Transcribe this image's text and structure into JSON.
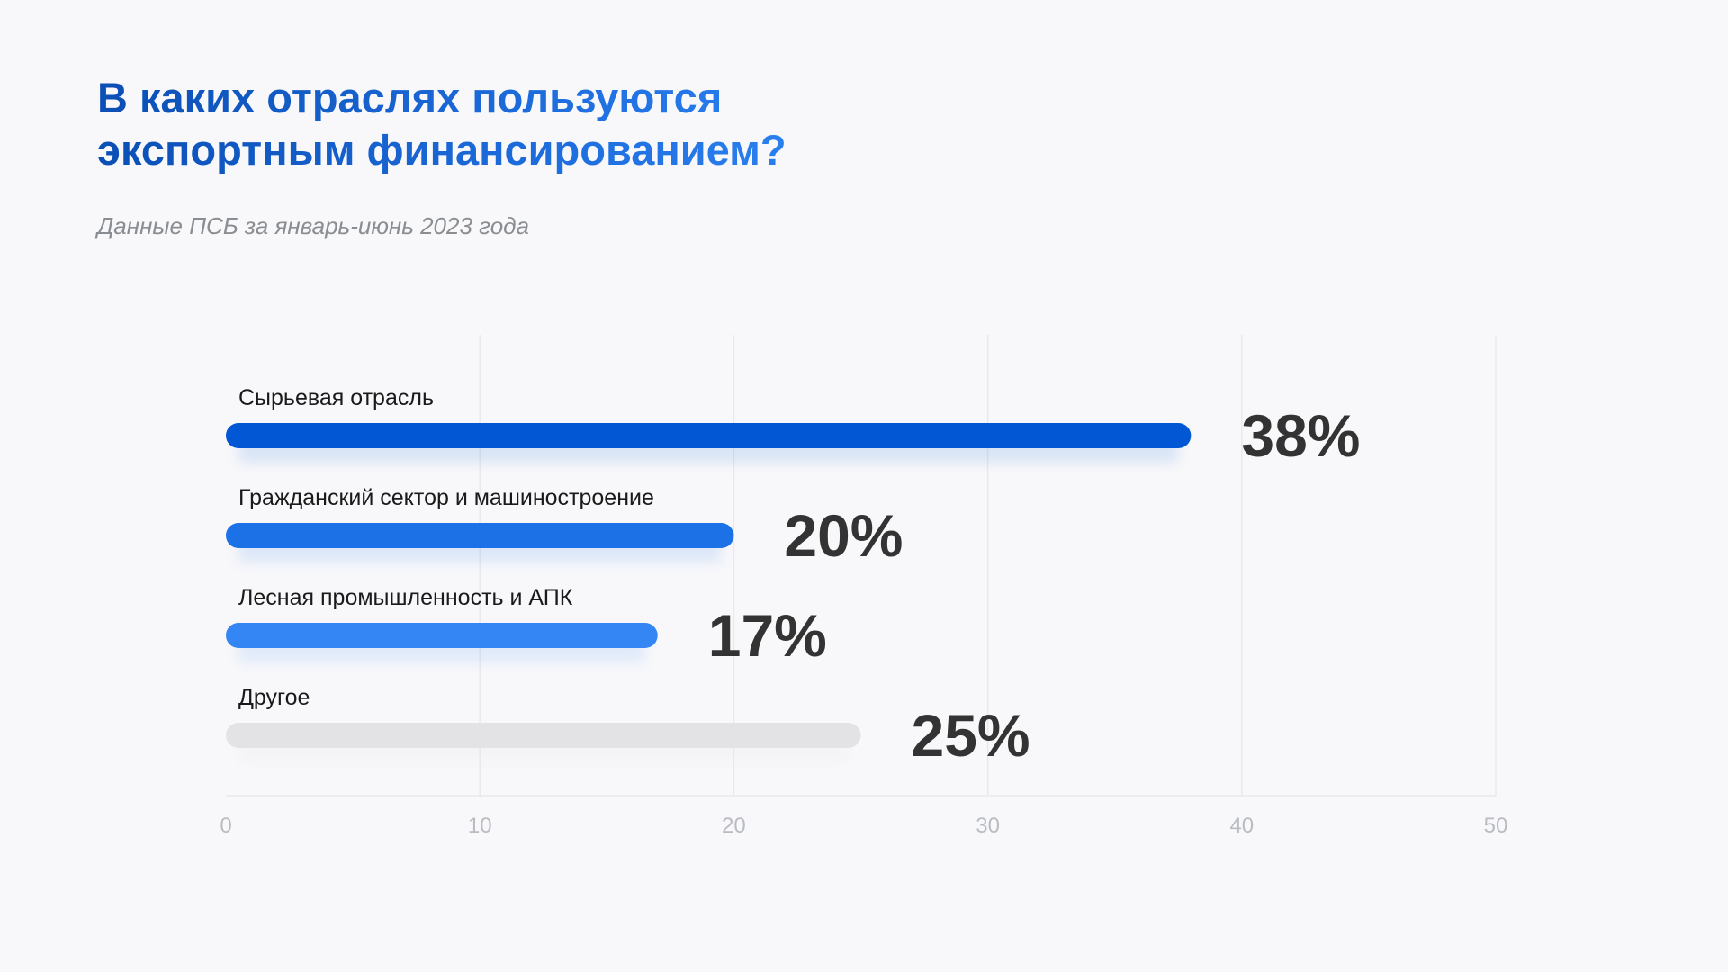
{
  "header": {
    "title_line1": "В каких отраслях пользуются",
    "title_line2": "экспортным финансированием?",
    "subtitle": "Данные ПСБ за январь-июнь 2023 года"
  },
  "chart_data": {
    "type": "bar",
    "orientation": "horizontal",
    "title": "В каких отраслях пользуются экспортным финансированием?",
    "subtitle": "Данные ПСБ за январь-июнь 2023 года",
    "categories": [
      "Сырьевая отрасль",
      "Гражданский сектор и машиностроение",
      "Лесная промышленность и АПК",
      "Другое"
    ],
    "values": [
      38,
      20,
      17,
      25
    ],
    "value_labels": [
      "38%",
      "20%",
      "17%",
      "25%"
    ],
    "bar_colors": [
      "#0257d4",
      "#1d71e6",
      "#3386f4",
      "#e3e3e5"
    ],
    "xlim": [
      0,
      50
    ],
    "xticks": [
      0,
      10,
      20,
      30,
      40,
      50
    ],
    "grid": "vertical",
    "legend": "none"
  },
  "colors": {
    "background": "#f8f8fa",
    "title": "#0d55c2",
    "subtitle": "#8a8d92",
    "value_text": "#333333",
    "grid": "#e8e9ec",
    "tick_text": "#b9bcc2"
  }
}
